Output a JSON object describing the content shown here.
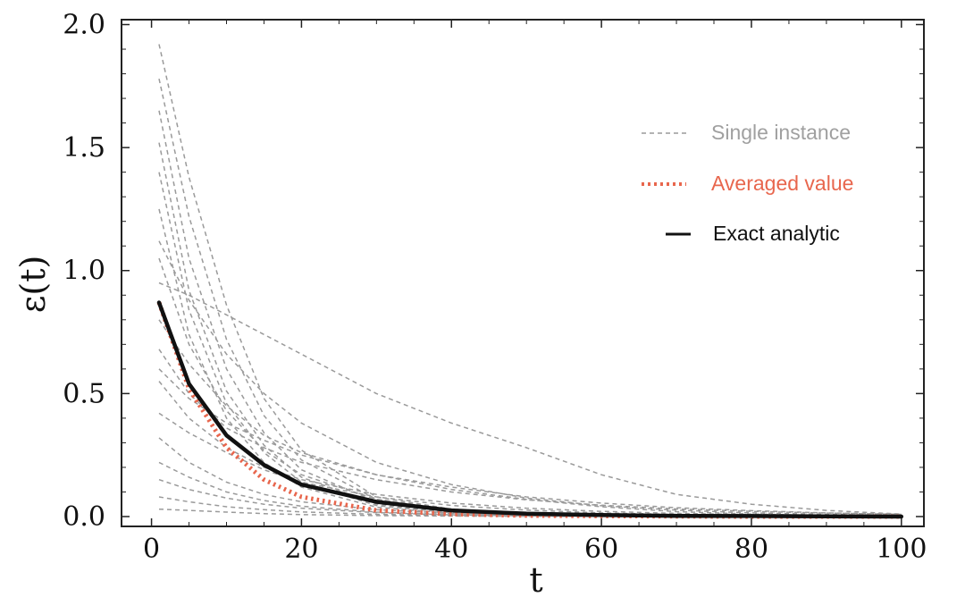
{
  "chart_data": {
    "type": "line",
    "title": "",
    "xlabel": "t",
    "ylabel": "ε(t)",
    "xlim": [
      -4,
      103
    ],
    "ylim": [
      -0.04,
      2.02
    ],
    "xticks": [
      0,
      20,
      40,
      60,
      80,
      100
    ],
    "xtick_labels": [
      "0",
      "20",
      "40",
      "60",
      "80",
      "100"
    ],
    "yticks": [
      0.0,
      0.5,
      1.0,
      1.5,
      2.0
    ],
    "ytick_labels": [
      "0.0",
      "0.5",
      "1.0",
      "1.5",
      "2.0"
    ],
    "grid": false,
    "legend_position": "top-right",
    "legend": [
      {
        "label": "Single instance",
        "style": "thin-dashed",
        "color": "#9a9a9a"
      },
      {
        "label": "Averaged value",
        "style": "dotted",
        "color": "#e8664d"
      },
      {
        "label": "Exact analytic",
        "style": "solid",
        "color": "#111111"
      }
    ],
    "x": [
      1,
      5,
      10,
      15,
      20,
      30,
      40,
      50,
      60,
      70,
      80,
      90,
      100
    ],
    "series": [
      {
        "name": "Exact analytic",
        "color": "#111111",
        "values": [
          0.87,
          0.54,
          0.33,
          0.21,
          0.13,
          0.06,
          0.025,
          0.012,
          0.006,
          0.003,
          0.002,
          0.001,
          0.0
        ]
      },
      {
        "name": "Averaged value",
        "color": "#e8664d",
        "values": [
          0.87,
          0.52,
          0.28,
          0.15,
          0.08,
          0.025,
          0.01,
          0.004,
          0.002,
          0.001,
          0.0,
          0.0,
          0.0
        ]
      },
      {
        "name": "Single instance 1",
        "color": "#9a9a9a",
        "values": [
          1.92,
          1.38,
          0.86,
          0.48,
          0.27,
          0.08,
          0.03,
          0.01,
          0.005,
          0.002,
          0.001,
          0.0,
          0.0
        ]
      },
      {
        "name": "Single instance 2",
        "color": "#9a9a9a",
        "values": [
          1.78,
          1.22,
          0.72,
          0.41,
          0.23,
          0.07,
          0.025,
          0.01,
          0.004,
          0.002,
          0.001,
          0.0,
          0.0
        ]
      },
      {
        "name": "Single instance 3",
        "color": "#9a9a9a",
        "values": [
          1.65,
          1.05,
          0.6,
          0.34,
          0.19,
          0.06,
          0.02,
          0.008,
          0.003,
          0.001,
          0.0,
          0.0,
          0.0
        ]
      },
      {
        "name": "Single instance 4",
        "color": "#9a9a9a",
        "values": [
          1.52,
          0.92,
          0.51,
          0.29,
          0.16,
          0.05,
          0.018,
          0.006,
          0.002,
          0.001,
          0.0,
          0.0,
          0.0
        ]
      },
      {
        "name": "Single instance 5",
        "color": "#9a9a9a",
        "values": [
          1.4,
          0.84,
          0.46,
          0.26,
          0.14,
          0.045,
          0.015,
          0.005,
          0.002,
          0.001,
          0.0,
          0.0,
          0.0
        ]
      },
      {
        "name": "Single instance 6",
        "color": "#9a9a9a",
        "values": [
          1.25,
          0.74,
          0.4,
          0.22,
          0.12,
          0.038,
          0.013,
          0.005,
          0.002,
          0.001,
          0.0,
          0.0,
          0.0
        ]
      },
      {
        "name": "Single instance 7",
        "color": "#9a9a9a",
        "values": [
          1.12,
          0.88,
          0.66,
          0.5,
          0.38,
          0.22,
          0.13,
          0.075,
          0.044,
          0.026,
          0.015,
          0.009,
          0.005
        ]
      },
      {
        "name": "Single instance 8",
        "color": "#9a9a9a",
        "values": [
          0.95,
          0.9,
          0.82,
          0.74,
          0.66,
          0.5,
          0.38,
          0.28,
          0.17,
          0.09,
          0.05,
          0.025,
          0.01
        ]
      },
      {
        "name": "Single instance 9",
        "color": "#9a9a9a",
        "values": [
          0.8,
          0.62,
          0.45,
          0.33,
          0.26,
          0.17,
          0.12,
          0.08,
          0.055,
          0.036,
          0.024,
          0.015,
          0.01
        ]
      },
      {
        "name": "Single instance 10",
        "color": "#9a9a9a",
        "values": [
          0.68,
          0.5,
          0.36,
          0.28,
          0.22,
          0.15,
          0.1,
          0.068,
          0.046,
          0.031,
          0.021,
          0.014,
          0.009
        ]
      },
      {
        "name": "Single instance 11",
        "color": "#9a9a9a",
        "values": [
          0.55,
          0.4,
          0.28,
          0.2,
          0.15,
          0.09,
          0.055,
          0.034,
          0.021,
          0.013,
          0.008,
          0.005,
          0.003
        ]
      },
      {
        "name": "Single instance 12",
        "color": "#9a9a9a",
        "values": [
          0.42,
          0.34,
          0.26,
          0.19,
          0.14,
          0.08,
          0.045,
          0.026,
          0.015,
          0.009,
          0.005,
          0.003,
          0.002
        ]
      },
      {
        "name": "Single instance 13",
        "color": "#9a9a9a",
        "values": [
          0.32,
          0.22,
          0.14,
          0.09,
          0.06,
          0.028,
          0.013,
          0.006,
          0.003,
          0.001,
          0.0,
          0.0,
          0.0
        ]
      },
      {
        "name": "Single instance 14",
        "color": "#9a9a9a",
        "values": [
          0.22,
          0.16,
          0.1,
          0.065,
          0.042,
          0.018,
          0.008,
          0.003,
          0.001,
          0.0,
          0.0,
          0.0,
          0.0
        ]
      },
      {
        "name": "Single instance 15",
        "color": "#9a9a9a",
        "values": [
          0.15,
          0.11,
          0.075,
          0.05,
          0.034,
          0.016,
          0.007,
          0.003,
          0.001,
          0.0,
          0.0,
          0.0,
          0.0
        ]
      },
      {
        "name": "Single instance 16",
        "color": "#9a9a9a",
        "values": [
          0.08,
          0.06,
          0.04,
          0.028,
          0.019,
          0.009,
          0.004,
          0.002,
          0.001,
          0.0,
          0.0,
          0.0,
          0.0
        ]
      },
      {
        "name": "Single instance 17",
        "color": "#9a9a9a",
        "values": [
          0.03,
          0.025,
          0.018,
          0.012,
          0.008,
          0.004,
          0.002,
          0.001,
          0.0,
          0.0,
          0.0,
          0.0,
          0.0
        ]
      },
      {
        "name": "Single instance 18",
        "color": "#9a9a9a",
        "values": [
          0.6,
          0.48,
          0.38,
          0.31,
          0.25,
          0.17,
          0.11,
          0.07,
          0.04,
          0.02,
          0.01,
          0.005,
          0.002
        ]
      },
      {
        "name": "Single instance 19",
        "color": "#9a9a9a",
        "values": [
          1.05,
          0.7,
          0.43,
          0.27,
          0.17,
          0.07,
          0.03,
          0.012,
          0.005,
          0.002,
          0.001,
          0.0,
          0.0
        ]
      }
    ]
  }
}
